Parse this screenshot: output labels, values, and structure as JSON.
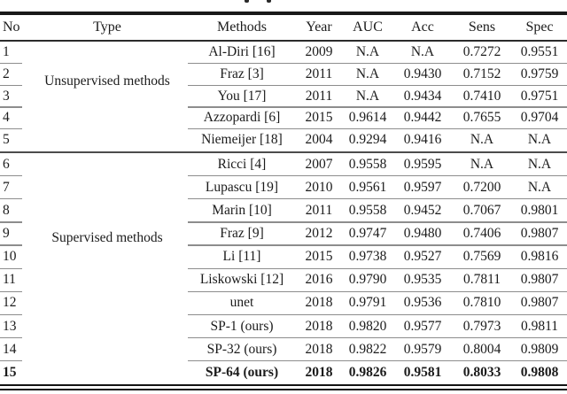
{
  "colors": {
    "ink": "#1b1b1b",
    "row_rule": "#8d8d8d",
    "heavy_rule": "#141414"
  },
  "table": {
    "headers": {
      "no": "No",
      "type": "Type",
      "methods": "Methods",
      "year": "Year",
      "auc": "AUC",
      "acc": "Acc",
      "sens": "Sens",
      "spec": "Spec"
    },
    "groups": [
      {
        "label": "Unsupervised methods"
      },
      {
        "label": "Supervised methods"
      }
    ],
    "rows": [
      {
        "no": "1",
        "method": "Al-Diri [16]",
        "year": "2009",
        "auc": "N.A",
        "acc": "N.A",
        "sens": "0.7272",
        "spec": "0.9551"
      },
      {
        "no": "2",
        "method": "Fraz [3]",
        "year": "2011",
        "auc": "N.A",
        "acc": "0.9430",
        "sens": "0.7152",
        "spec": "0.9759"
      },
      {
        "no": "3",
        "method": "You [17]",
        "year": "2011",
        "auc": "N.A",
        "acc": "0.9434",
        "sens": "0.7410",
        "spec": "0.9751"
      },
      {
        "no": "4",
        "method": "Azzopardi [6]",
        "year": "2015",
        "auc": "0.9614",
        "acc": "0.9442",
        "sens": "0.7655",
        "spec": "0.9704"
      },
      {
        "no": "5",
        "method": "Niemeijer [18]",
        "year": "2004",
        "auc": "0.9294",
        "acc": "0.9416",
        "sens": "N.A",
        "spec": "N.A"
      },
      {
        "no": "6",
        "method": "Ricci [4]",
        "year": "2007",
        "auc": "0.9558",
        "acc": "0.9595",
        "sens": "N.A",
        "spec": "N.A"
      },
      {
        "no": "7",
        "method": "Lupascu [19]",
        "year": "2010",
        "auc": "0.9561",
        "acc": "0.9597",
        "sens": "0.7200",
        "spec": "N.A"
      },
      {
        "no": "8",
        "method": "Marin [10]",
        "year": "2011",
        "auc": "0.9558",
        "acc": "0.9452",
        "sens": "0.7067",
        "spec": "0.9801"
      },
      {
        "no": "9",
        "method": "Fraz [9]",
        "year": "2012",
        "auc": "0.9747",
        "acc": "0.9480",
        "sens": "0.7406",
        "spec": "0.9807"
      },
      {
        "no": "10",
        "method": "Li [11]",
        "year": "2015",
        "auc": "0.9738",
        "acc": "0.9527",
        "sens": "0.7569",
        "spec": "0.9816"
      },
      {
        "no": "11",
        "method": "Liskowski [12]",
        "year": "2016",
        "auc": "0.9790",
        "acc": "0.9535",
        "sens": "0.7811",
        "spec": "0.9807"
      },
      {
        "no": "12",
        "method": "unet",
        "year": "2018",
        "auc": "0.9791",
        "acc": "0.9536",
        "sens": "0.7810",
        "spec": "0.9807"
      },
      {
        "no": "13",
        "method": "SP-1 (ours)",
        "year": "2018",
        "auc": "0.9820",
        "acc": "0.9577",
        "sens": "0.7973",
        "spec": "0.9811"
      },
      {
        "no": "14",
        "method": "SP-32 (ours)",
        "year": "2018",
        "auc": "0.9822",
        "acc": "0.9579",
        "sens": "0.8004",
        "spec": "0.9809"
      },
      {
        "no": "15",
        "method": "SP-64 (ours)",
        "year": "2018",
        "auc": "0.9826",
        "acc": "0.9581",
        "sens": "0.8033",
        "spec": "0.9808"
      }
    ]
  }
}
